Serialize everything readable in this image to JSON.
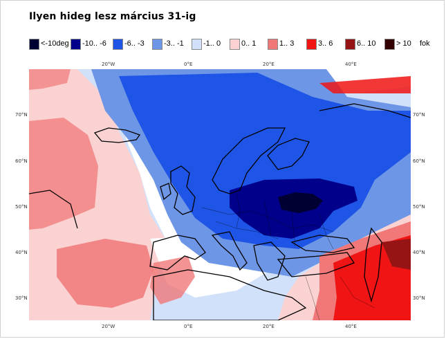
{
  "title": "Ilyen hideg lesz március 31-ig",
  "legend": {
    "items": [
      {
        "label": "<-10deg",
        "color": "#000033"
      },
      {
        "label": "-10.. -6",
        "color": "#00008b"
      },
      {
        "label": "-6.. -3",
        "color": "#1e55e6"
      },
      {
        "label": "-3.. -1",
        "color": "#6e96e6"
      },
      {
        "label": "-1.. 0",
        "color": "#d2e1fa"
      },
      {
        "label": "0.. 1",
        "color": "#fad2d2"
      },
      {
        "label": "1.. 3",
        "color": "#f07878"
      },
      {
        "label": "3.. 6",
        "color": "#f01414"
      },
      {
        "label": "6.. 10",
        "color": "#961414"
      },
      {
        "label": "> 10",
        "color": "#320000"
      }
    ],
    "unit": "fok"
  },
  "axes": {
    "lon_top": [
      "20°W",
      "0°E",
      "20°E",
      "40°E"
    ],
    "lon_bottom": [
      "20°W",
      "0°E",
      "20°E",
      "40°E"
    ],
    "lat_left": [
      "70°N",
      "60°N",
      "50°N",
      "40°N",
      "30°N"
    ],
    "lat_right": [
      "70°N",
      "60°N",
      "50°N",
      "40°N",
      "30°N"
    ]
  }
}
